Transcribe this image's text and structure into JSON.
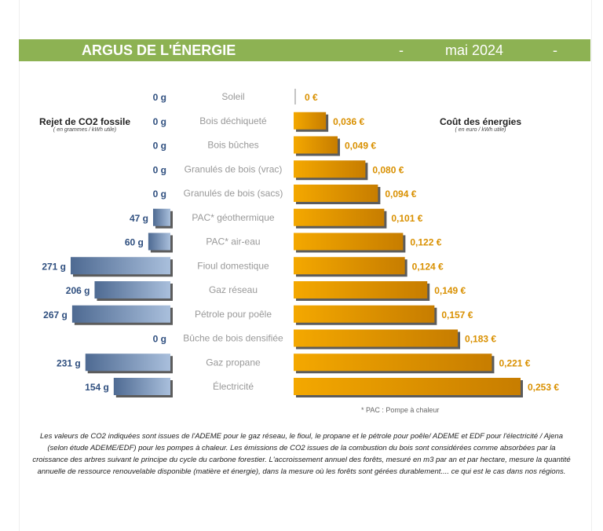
{
  "header": {
    "title": "ARGUS DE L'ÉNERGIE",
    "separator": "-",
    "date": "mai 2024"
  },
  "left_panel": {
    "title": "Rejet de CO2 fossile",
    "subtitle": "( en grammes / kWh utile)"
  },
  "right_panel": {
    "title": "Coût des énergies",
    "subtitle": "( en euro / kWh utile)"
  },
  "footnote_pac": "* PAC  :  Pompe à chaleur",
  "note": "Les valeurs de CO2 indiquées sont issues de l'ADEME pour le gaz réseau, le fioul, le propane et le pétrole pour poêle/ ADEME et EDF pour l'électricité / Ajena (selon étude ADEME/EDF) pour les pompes à chaleur. Les émissions de CO2 issues de la combustion du bois sont considérées comme absorbées par la croissance des arbres suivant le principe du cycle du carbone forestier. L'accroissement annuel des forêts, mesuré en m3 par an et par hectare, mesure la quantité annuelle de ressource renouvelable disponible (matière et énergie), dans la mesure où les forêts sont gérées durablement.... ce qui est le cas dans nos régions.",
  "chart_data": {
    "type": "bar",
    "orientation": "horizontal-butterfly",
    "categories": [
      "Soleil",
      "Bois déchiqueté",
      "Bois bûches",
      "Granulés de bois (vrac)",
      "Granulés de bois (sacs)",
      "PAC* géothermique",
      "PAC* air-eau",
      "Fioul domestique",
      "Gaz réseau",
      "Pétrole pour poêle",
      "Bûche de bois densifiée",
      "Gaz propane",
      "Électricité"
    ],
    "series": [
      {
        "name": "Rejet de CO2 fossile",
        "unit": "g",
        "values": [
          0,
          0,
          0,
          0,
          0,
          47,
          60,
          271,
          206,
          267,
          0,
          231,
          154
        ],
        "labels": [
          "0 g",
          "0 g",
          "0 g",
          "0 g",
          "0 g",
          "47 g",
          "60 g",
          "271 g",
          "206 g",
          "267 g",
          "0 g",
          "231 g",
          "154 g"
        ],
        "color": "#6f87ad"
      },
      {
        "name": "Coût des énergies",
        "unit": "€",
        "values": [
          0,
          0.036,
          0.049,
          0.08,
          0.094,
          0.101,
          0.122,
          0.124,
          0.149,
          0.157,
          0.183,
          0.221,
          0.253
        ],
        "labels": [
          "0 €",
          "0,036 €",
          "0,049 €",
          "0,080 €",
          "0,094 €",
          "0,101 €",
          "0,122 €",
          "0,124 €",
          "0,149 €",
          "0,157 €",
          "0,183 €",
          "0,221 €",
          "0,253 €"
        ],
        "color": "#f0a000"
      }
    ]
  }
}
